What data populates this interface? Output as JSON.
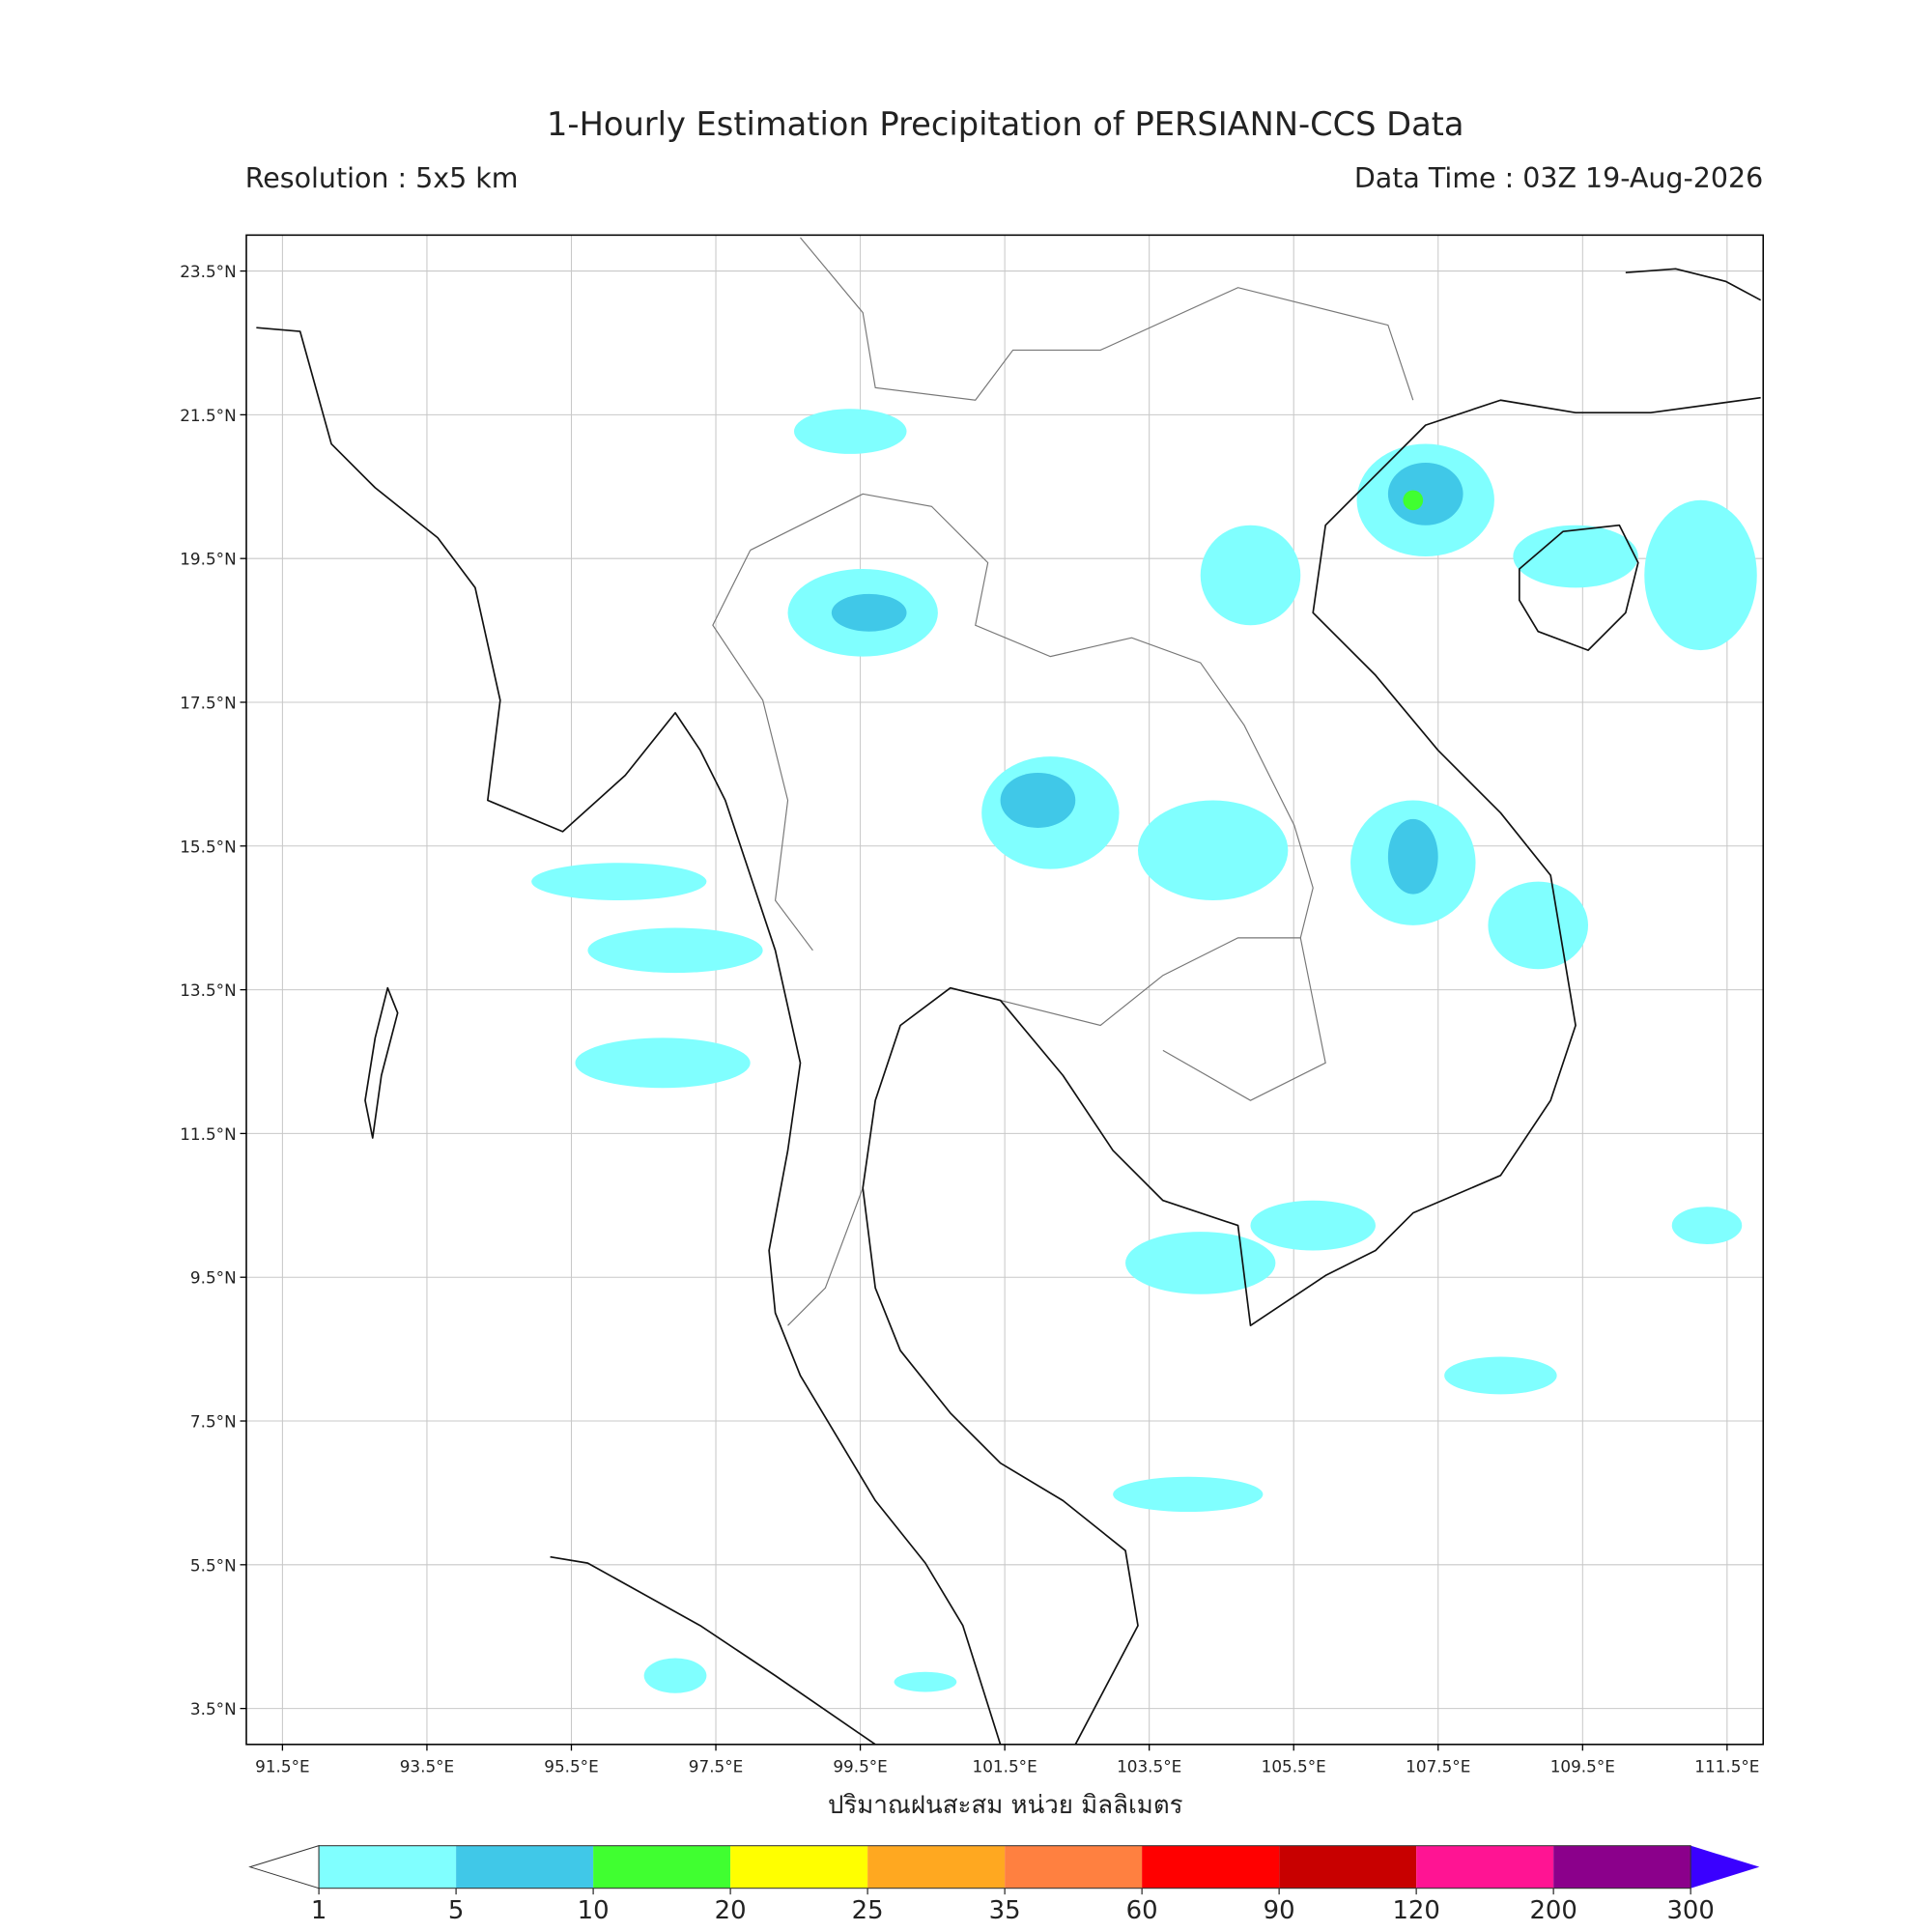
{
  "title": "1-Hourly Estimation Precipitation of PERSIANN-CCS Data",
  "subtitle_left": "Resolution : 5x5 km",
  "subtitle_right": "Data Time : 03Z 19-Aug-2026",
  "map": {
    "xlim": [
      91,
      112
    ],
    "ylim": [
      3,
      24
    ],
    "lat_ticks": [
      {
        "value": 23.5,
        "label": "23.5°N"
      },
      {
        "value": 21.5,
        "label": "21.5°N"
      },
      {
        "value": 19.5,
        "label": "19.5°N"
      },
      {
        "value": 17.5,
        "label": "17.5°N"
      },
      {
        "value": 15.5,
        "label": "15.5°N"
      },
      {
        "value": 13.5,
        "label": "13.5°N"
      },
      {
        "value": 11.5,
        "label": "11.5°N"
      },
      {
        "value": 9.5,
        "label": "9.5°N"
      },
      {
        "value": 7.5,
        "label": "7.5°N"
      },
      {
        "value": 5.5,
        "label": "5.5°N"
      },
      {
        "value": 3.5,
        "label": "3.5°N"
      }
    ],
    "lon_ticks": [
      {
        "value": 91.5,
        "label": "91.5°E"
      },
      {
        "value": 93.5,
        "label": "93.5°E"
      },
      {
        "value": 95.5,
        "label": "95.5°E"
      },
      {
        "value": 97.5,
        "label": "97.5°E"
      },
      {
        "value": 99.5,
        "label": "99.5°E"
      },
      {
        "value": 101.5,
        "label": "101.5°E"
      },
      {
        "value": 103.5,
        "label": "103.5°E"
      },
      {
        "value": 105.5,
        "label": "105.5°E"
      },
      {
        "value": 107.5,
        "label": "107.5°E"
      },
      {
        "value": 109.5,
        "label": "109.5°E"
      },
      {
        "value": 111.5,
        "label": "111.5°E"
      }
    ],
    "xlabel": "ปริมาณฝนสะสม หน่วย มิลลิเมตร"
  },
  "colorbar": {
    "levels": [
      1,
      5,
      10,
      20,
      25,
      35,
      60,
      90,
      120,
      200,
      300
    ],
    "colors": [
      "#80ffff",
      "#40c8e8",
      "#40ff30",
      "#ffff00",
      "#ffa820",
      "#ff8040",
      "#ff0000",
      "#c80000",
      "#ff1493",
      "#8b008b"
    ],
    "under_color": "#ffffff",
    "over_color": "#3a00ff"
  }
}
